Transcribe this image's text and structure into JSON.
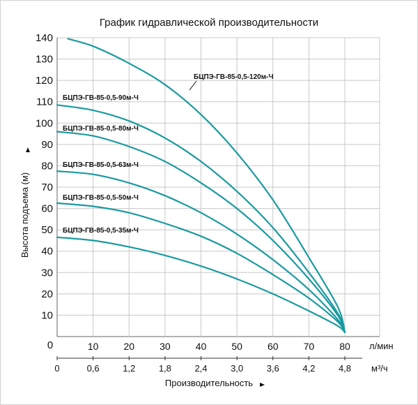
{
  "chart_data": {
    "type": "line",
    "title": "График гидравлической производительности",
    "ylabel": "Высота подъема (м)",
    "xlabel": "Производительность",
    "x_unit": "л/мин",
    "x2_unit": "м³/ч",
    "y_origin_label": "0",
    "ylim": [
      0,
      140
    ],
    "xlim": [
      0,
      80
    ],
    "y_ticks": [
      "10",
      "20",
      "30",
      "40",
      "50",
      "60",
      "70",
      "80",
      "90",
      "100",
      "110",
      "120",
      "130",
      "140"
    ],
    "x_ticks": [
      "10",
      "20",
      "30",
      "40",
      "50",
      "60",
      "70",
      "80"
    ],
    "x2_ticks": [
      "0",
      "0,6",
      "1,2",
      "1,8",
      "2,4",
      "3,0",
      "3,6",
      "4,2",
      "4,8"
    ],
    "grid": true,
    "line_color": "#1a9aa0",
    "series": [
      {
        "name": "БЦПЭ-ГВ-85-0,5-120м-Ч",
        "x": [
          3,
          10,
          20,
          30,
          40,
          50,
          60,
          70,
          78,
          80
        ],
        "y": [
          139.5,
          136,
          128,
          118,
          104,
          86,
          64,
          37,
          14,
          2
        ]
      },
      {
        "name": "БЦПЭ-ГВ-85-0,5-90м-Ч",
        "x": [
          0,
          10,
          20,
          30,
          40,
          50,
          60,
          70,
          78,
          80
        ],
        "y": [
          108.5,
          106,
          101,
          93,
          82,
          68,
          51,
          30,
          11,
          2
        ]
      },
      {
        "name": "БЦПЭ-ГВ-85-0,5-80м-Ч",
        "x": [
          0,
          10,
          20,
          30,
          40,
          50,
          60,
          70,
          78,
          80
        ],
        "y": [
          96,
          94,
          89,
          82,
          72,
          60,
          45,
          27,
          10,
          2
        ]
      },
      {
        "name": "БЦПЭ-ГВ-85-0,5-63м-Ч",
        "x": [
          0,
          10,
          20,
          30,
          40,
          50,
          60,
          70,
          78,
          80
        ],
        "y": [
          77.5,
          76,
          72,
          66,
          58,
          48,
          36,
          22,
          8,
          2
        ]
      },
      {
        "name": "БЦПЭ-ГВ-85-0,5-50м-Ч",
        "x": [
          0,
          10,
          20,
          30,
          40,
          50,
          60,
          70,
          78,
          80
        ],
        "y": [
          62.5,
          61,
          58,
          53,
          47,
          39,
          29,
          18,
          7,
          2
        ]
      },
      {
        "name": "БЦПЭ-ГВ-85-0,5-35м-Ч",
        "x": [
          0,
          10,
          20,
          30,
          40,
          50,
          60,
          70,
          78,
          80
        ],
        "y": [
          46.5,
          45,
          42,
          38,
          33,
          27,
          20,
          12,
          5,
          2
        ]
      }
    ]
  }
}
